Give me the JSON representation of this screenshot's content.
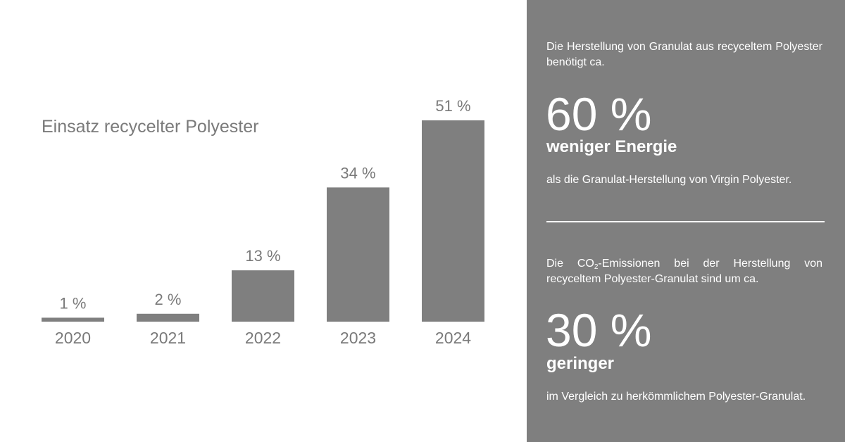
{
  "chart_data": {
    "type": "bar",
    "title": "Einsatz recycelter Polyester",
    "categories": [
      "2020",
      "2021",
      "2022",
      "2023",
      "2024"
    ],
    "values": [
      1,
      2,
      13,
      34,
      51
    ],
    "value_labels": [
      "1 %",
      "2 %",
      "13 %",
      "34 %",
      "51 %"
    ],
    "unit": "%",
    "ylim": [
      0,
      51
    ],
    "grid": false,
    "bar_color": "#7f7f7f"
  },
  "panel": {
    "background": "#7f7f7f",
    "energy": {
      "intro": "Die Herstellung von Granulat aus recyceltem Polyester benötigt ca.",
      "value": "60 %",
      "headline": "weniger Energie",
      "note": "als die Granulat-Herstellung von Virgin Polyester."
    },
    "co2": {
      "intro_before": "Die CO",
      "intro_sub": "2",
      "intro_after": "-Emissionen bei der Herstellung von recyceltem Polyester-Granulat sind um ca.",
      "value": "30 %",
      "headline": "geringer",
      "note": "im Vergleich zu herkömmlichem Polyester-Granulat."
    }
  }
}
